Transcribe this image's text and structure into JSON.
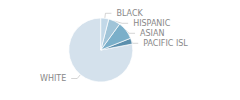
{
  "chart_data": {
    "type": "pie",
    "categories": [
      "WHITE",
      "PACIFIC ISL",
      "ASIAN",
      "HISPANIC",
      "BLACK"
    ],
    "values": [
      78,
      3,
      9,
      6,
      4
    ],
    "colors": [
      "#d4e1ec",
      "#5b8fad",
      "#7aafc9",
      "#a0c4d8",
      "#c2d8e8"
    ]
  }
}
